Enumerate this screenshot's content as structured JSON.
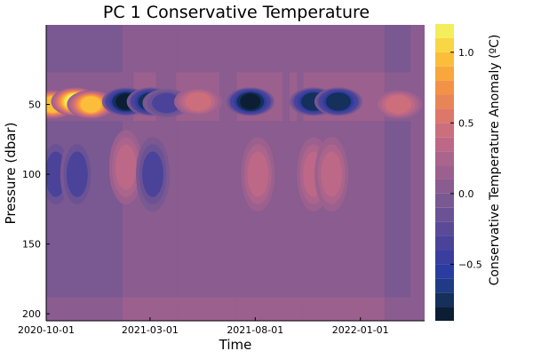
{
  "chart_data": {
    "type": "heatmap",
    "title": "PC 1 Conservative Temperature",
    "xlabel": "Time",
    "ylabel": "Pressure (dbar)",
    "colorbar_label": "Conservative Temperature Anomaly (ºC)",
    "x_ticks": [
      "2020-10-01",
      "2021-03-01",
      "2021-08-01",
      "2022-01-01"
    ],
    "y_ticks": [
      50,
      100,
      150,
      200
    ],
    "colorbar_ticks": [
      "−0.5",
      "0.0",
      "0.5",
      "1.0"
    ],
    "ylim": [
      200,
      0
    ],
    "clim": [
      -0.9,
      1.2
    ],
    "levels": [
      -0.9,
      -0.8,
      -0.7,
      -0.6,
      -0.5,
      -0.4,
      -0.3,
      -0.2,
      -0.1,
      0.0,
      0.1,
      0.2,
      0.3,
      0.4,
      0.5,
      0.6,
      0.7,
      0.8,
      0.9,
      1.0,
      1.1,
      1.2
    ],
    "colormap": [
      "#0b1e33",
      "#14305b",
      "#1f3b86",
      "#2a3ca0",
      "#3a3e9f",
      "#4a4399",
      "#5a4a98",
      "#6a5295",
      "#7a5892",
      "#8a5c90",
      "#9b608e",
      "#ab648b",
      "#bc6886",
      "#cc6e7b",
      "#dc7769",
      "#e98456",
      "#f39247",
      "#f8a73c",
      "#fbbe3a",
      "#f9d643",
      "#f3ee5b"
    ],
    "background_value": 0.05,
    "bands": [
      {
        "date": "2020-10-01",
        "value": -0.05
      },
      {
        "date": "2020-12-15",
        "value": -0.05
      },
      {
        "date": "2021-01-20",
        "value": 0.0
      },
      {
        "date": "2021-02-05",
        "value": 0.05
      },
      {
        "date": "2021-03-10",
        "value": 0.0
      },
      {
        "date": "2021-04-08",
        "value": 0.05
      },
      {
        "date": "2021-06-10",
        "value": 0.0
      },
      {
        "date": "2021-07-05",
        "value": 0.05
      },
      {
        "date": "2021-09-10",
        "value": 0.0
      },
      {
        "date": "2021-09-20",
        "value": 0.05
      },
      {
        "date": "2021-10-01",
        "value": 0.0
      },
      {
        "date": "2021-10-10",
        "value": 0.05
      },
      {
        "date": "2022-02-05",
        "value": -0.05
      }
    ],
    "range_end": "2022-03-15",
    "features": [
      {
        "date": "2020-10-10",
        "pressure": 50,
        "value": 0.95
      },
      {
        "date": "2020-11-12",
        "pressure": 48,
        "value": 1.1
      },
      {
        "date": "2020-12-05",
        "pressure": 50,
        "value": 1.0
      },
      {
        "date": "2021-01-25",
        "pressure": 48,
        "value": -0.9
      },
      {
        "date": "2021-03-02",
        "pressure": 48,
        "value": -0.85
      },
      {
        "date": "2021-03-25",
        "pressure": 49,
        "value": -0.3
      },
      {
        "date": "2021-05-10",
        "pressure": 48,
        "value": 0.45
      },
      {
        "date": "2021-07-25",
        "pressure": 48,
        "value": -0.9
      },
      {
        "date": "2021-10-25",
        "pressure": 48,
        "value": -0.8
      },
      {
        "date": "2021-11-30",
        "pressure": 48,
        "value": -0.85
      },
      {
        "date": "2022-02-25",
        "pressure": 50,
        "value": 0.45
      },
      {
        "date": "2020-10-15",
        "pressure": 100,
        "value": -0.3
      },
      {
        "date": "2020-11-15",
        "pressure": 100,
        "value": -0.35
      },
      {
        "date": "2021-01-25",
        "pressure": 95,
        "value": 0.3
      },
      {
        "date": "2021-03-05",
        "pressure": 100,
        "value": -0.3
      },
      {
        "date": "2021-08-05",
        "pressure": 100,
        "value": 0.3
      },
      {
        "date": "2021-10-25",
        "pressure": 100,
        "value": 0.3
      },
      {
        "date": "2021-11-20",
        "pressure": 100,
        "value": 0.3
      }
    ]
  }
}
